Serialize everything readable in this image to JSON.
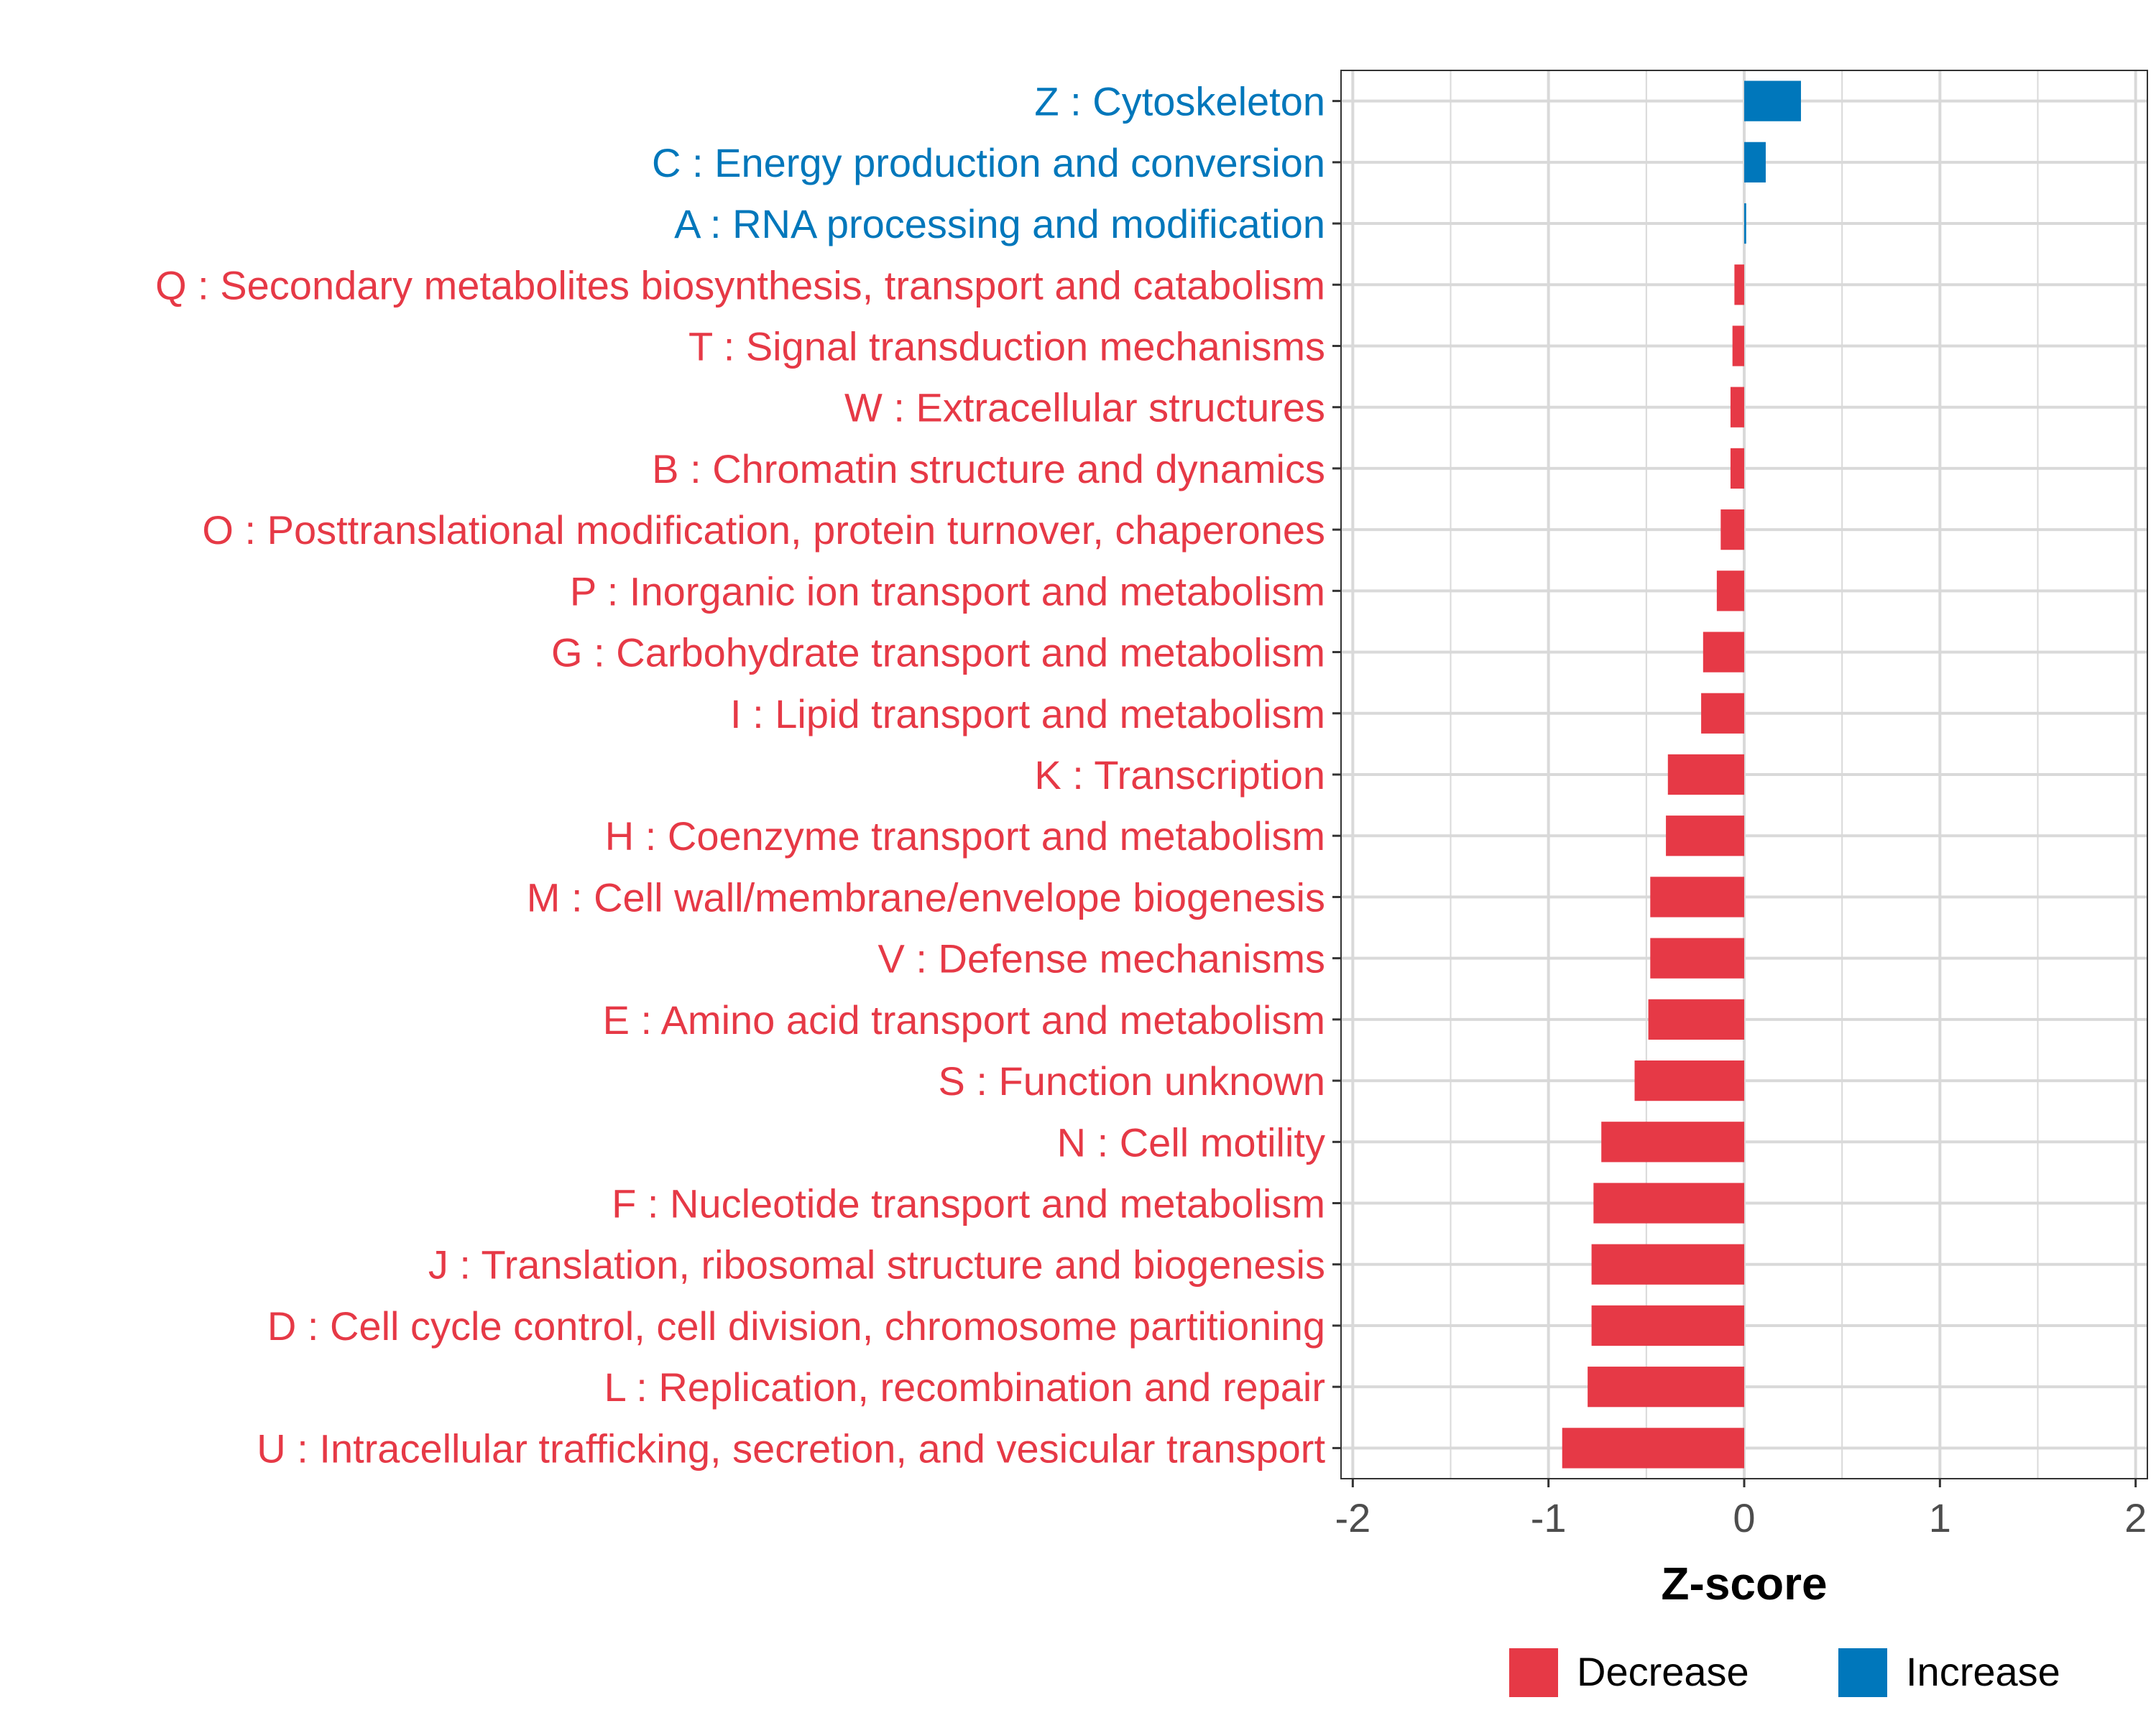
{
  "chart_data": {
    "type": "bar",
    "orientation": "horizontal",
    "title": "",
    "xlabel": "Z-score",
    "ylabel": "",
    "xlim": [
      -2.06,
      2.06
    ],
    "xticks": [
      -2,
      -1,
      0,
      1,
      2
    ],
    "xtick_labels": [
      "-2",
      "-1",
      "0",
      "1",
      "2"
    ],
    "grid": true,
    "colors": {
      "Decrease": "#E63946",
      "Increase": "#0077BB",
      "grid": "#D9D9D9",
      "axis_text": "#4D4D4D"
    },
    "categories": [
      "Z : Cytoskeleton",
      "C : Energy production and conversion",
      "A : RNA processing and modification",
      "Q : Secondary metabolites biosynthesis, transport and catabolism",
      "T : Signal transduction mechanisms",
      "W : Extracellular structures",
      "B : Chromatin structure and dynamics",
      "O : Posttranslational modification, protein turnover, chaperones",
      "P : Inorganic ion transport and metabolism",
      "G : Carbohydrate transport and metabolism",
      "I : Lipid transport and metabolism",
      "K : Transcription",
      "H : Coenzyme transport and metabolism",
      "M : Cell wall/membrane/envelope biogenesis",
      "V : Defense mechanisms",
      "E : Amino acid transport and metabolism",
      "S : Function unknown",
      "N : Cell motility",
      "F : Nucleotide transport and metabolism",
      "J : Translation, ribosomal structure and biogenesis",
      "D : Cell cycle control, cell division, chromosome partitioning",
      "L : Replication, recombination and repair",
      "U : Intracellular trafficking, secretion, and vesicular transport"
    ],
    "values": [
      0.29,
      0.11,
      0.01,
      -0.05,
      -0.06,
      -0.07,
      -0.07,
      -0.12,
      -0.14,
      -0.21,
      -0.22,
      -0.39,
      -0.4,
      -0.48,
      -0.48,
      -0.49,
      -0.56,
      -0.73,
      -0.77,
      -0.78,
      -0.78,
      -0.8,
      -0.93
    ],
    "groups": [
      "Increase",
      "Increase",
      "Increase",
      "Decrease",
      "Decrease",
      "Decrease",
      "Decrease",
      "Decrease",
      "Decrease",
      "Decrease",
      "Decrease",
      "Decrease",
      "Decrease",
      "Decrease",
      "Decrease",
      "Decrease",
      "Decrease",
      "Decrease",
      "Decrease",
      "Decrease",
      "Decrease",
      "Decrease",
      "Decrease"
    ],
    "legend": {
      "position": "bottom",
      "entries": [
        {
          "label": "Decrease",
          "color": "#E63946"
        },
        {
          "label": "Increase",
          "color": "#0077BB"
        }
      ]
    }
  }
}
